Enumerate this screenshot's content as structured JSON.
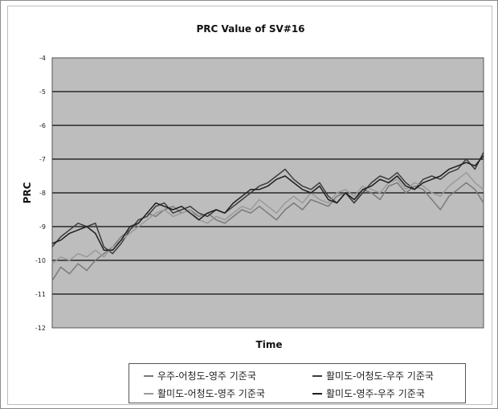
{
  "chart_data": {
    "type": "line",
    "title": "PRC Value of SV#16",
    "xlabel": "Time",
    "ylabel": "PRC",
    "ylim": [
      -12,
      -4
    ],
    "yticks": [
      "-4",
      "-5",
      "-6",
      "-7",
      "-8",
      "-9",
      "-10",
      "-11",
      "-12"
    ],
    "grid": true,
    "legend_position": "bottom",
    "colors": {
      "plot_background": "#bdbdbd",
      "gridline": "#2a2a2a"
    },
    "series": [
      {
        "name": "우주-어청도-영주 기준국",
        "color": "#7a7a7a",
        "x": [
          0,
          2,
          4,
          6,
          8,
          10,
          12,
          14,
          16,
          18,
          20,
          22,
          24,
          26,
          28,
          30,
          32,
          34,
          36,
          38,
          40,
          42,
          44,
          46,
          48,
          50,
          52,
          54,
          56,
          58,
          60,
          62,
          64,
          66,
          68,
          70,
          72,
          74,
          76,
          78,
          80,
          82,
          84,
          86,
          88,
          90,
          92,
          94,
          96,
          98,
          100
        ],
        "values": [
          -10.6,
          -10.2,
          -10.4,
          -10.1,
          -10.3,
          -10.0,
          -9.8,
          -9.6,
          -9.3,
          -9.1,
          -8.9,
          -8.6,
          -8.7,
          -8.5,
          -8.4,
          -8.6,
          -8.5,
          -8.7,
          -8.6,
          -8.8,
          -8.9,
          -8.7,
          -8.5,
          -8.6,
          -8.4,
          -8.6,
          -8.8,
          -8.5,
          -8.3,
          -8.5,
          -8.2,
          -8.3,
          -8.4,
          -8.1,
          -8.0,
          -8.3,
          -7.9,
          -8.0,
          -8.2,
          -7.8,
          -7.7,
          -8.0,
          -7.8,
          -7.9,
          -8.2,
          -8.5,
          -8.1,
          -7.9,
          -7.7,
          -7.9,
          -8.3
        ]
      },
      {
        "name": "활미도-어청도-우주 기준국",
        "color": "#3c3c3c",
        "x": [
          0,
          2,
          4,
          6,
          8,
          10,
          12,
          14,
          16,
          18,
          20,
          22,
          24,
          26,
          28,
          30,
          32,
          34,
          36,
          38,
          40,
          42,
          44,
          46,
          48,
          50,
          52,
          54,
          56,
          58,
          60,
          62,
          64,
          66,
          68,
          70,
          72,
          74,
          76,
          78,
          80,
          82,
          84,
          86,
          88,
          90,
          92,
          94,
          96,
          98,
          100
        ],
        "values": [
          -9.6,
          -9.3,
          -9.1,
          -8.9,
          -9.0,
          -8.9,
          -9.6,
          -9.8,
          -9.5,
          -9.1,
          -8.8,
          -8.7,
          -8.4,
          -8.3,
          -8.6,
          -8.5,
          -8.4,
          -8.6,
          -8.7,
          -8.5,
          -8.6,
          -8.4,
          -8.2,
          -8.0,
          -7.8,
          -7.7,
          -7.5,
          -7.3,
          -7.6,
          -7.8,
          -7.9,
          -7.7,
          -8.1,
          -8.3,
          -8.0,
          -8.3,
          -8.0,
          -7.7,
          -7.5,
          -7.6,
          -7.4,
          -7.7,
          -7.9,
          -7.6,
          -7.5,
          -7.6,
          -7.4,
          -7.3,
          -7.0,
          -7.3,
          -6.8
        ]
      },
      {
        "name": "활미도-어청도-영주 기준국",
        "color": "#9a9a9a",
        "x": [
          0,
          2,
          4,
          6,
          8,
          10,
          12,
          14,
          16,
          18,
          20,
          22,
          24,
          26,
          28,
          30,
          32,
          34,
          36,
          38,
          40,
          42,
          44,
          46,
          48,
          50,
          52,
          54,
          56,
          58,
          60,
          62,
          64,
          66,
          68,
          70,
          72,
          74,
          76,
          78,
          80,
          82,
          84,
          86,
          88,
          90,
          92,
          94,
          96,
          98,
          100
        ],
        "values": [
          -10.1,
          -9.9,
          -10.0,
          -9.8,
          -9.9,
          -9.7,
          -9.9,
          -9.6,
          -9.4,
          -9.2,
          -9.0,
          -8.8,
          -8.6,
          -8.5,
          -8.7,
          -8.6,
          -8.5,
          -8.8,
          -8.9,
          -8.7,
          -8.8,
          -8.6,
          -8.4,
          -8.5,
          -8.2,
          -8.4,
          -8.6,
          -8.3,
          -8.1,
          -8.3,
          -8.0,
          -8.2,
          -8.3,
          -8.0,
          -7.9,
          -8.1,
          -7.8,
          -7.9,
          -8.0,
          -7.7,
          -7.6,
          -7.9,
          -7.7,
          -7.8,
          -8.0,
          -8.1,
          -7.8,
          -7.6,
          -7.4,
          -7.7,
          -7.9
        ]
      },
      {
        "name": "활미도-영주-우주 기준국",
        "color": "#1e1e1e",
        "x": [
          0,
          2,
          4,
          6,
          8,
          10,
          12,
          14,
          16,
          18,
          20,
          22,
          24,
          26,
          28,
          30,
          32,
          34,
          36,
          38,
          40,
          42,
          44,
          46,
          48,
          50,
          52,
          54,
          56,
          58,
          60,
          62,
          64,
          66,
          68,
          70,
          72,
          74,
          76,
          78,
          80,
          82,
          84,
          86,
          88,
          90,
          92,
          94,
          96,
          98,
          100
        ],
        "values": [
          -9.5,
          -9.4,
          -9.2,
          -9.1,
          -9.0,
          -9.2,
          -9.7,
          -9.7,
          -9.4,
          -9.0,
          -8.9,
          -8.6,
          -8.3,
          -8.4,
          -8.5,
          -8.4,
          -8.6,
          -8.8,
          -8.6,
          -8.5,
          -8.6,
          -8.3,
          -8.1,
          -7.9,
          -7.9,
          -7.8,
          -7.6,
          -7.5,
          -7.7,
          -7.9,
          -8.0,
          -7.8,
          -8.2,
          -8.3,
          -8.0,
          -8.2,
          -7.9,
          -7.8,
          -7.6,
          -7.7,
          -7.5,
          -7.8,
          -7.9,
          -7.7,
          -7.6,
          -7.5,
          -7.3,
          -7.2,
          -7.1,
          -7.2,
          -6.9
        ]
      }
    ]
  }
}
